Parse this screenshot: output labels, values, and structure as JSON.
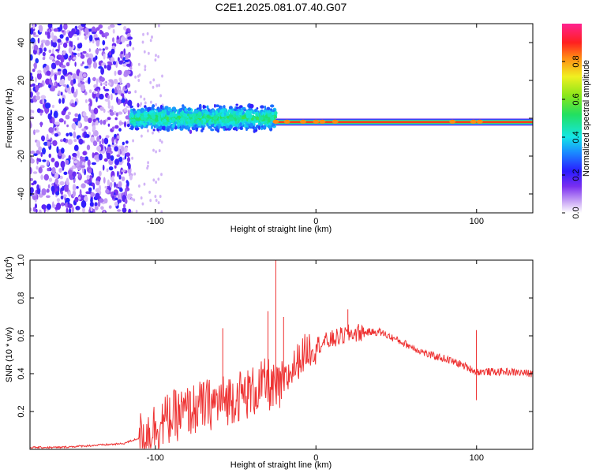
{
  "title": "C2E1.2025.081.07.40.G07",
  "colors": {
    "snr_line": "#ee3333",
    "frame": "#000000"
  },
  "chart_data": [
    {
      "type": "heatmap",
      "xlabel": "Height of straight line (km)",
      "ylabel": "Frequency (Hz)",
      "xlim": [
        -178,
        135
      ],
      "ylim": [
        -50,
        50
      ],
      "xticks": [
        -100,
        0,
        100
      ],
      "yticks": [
        -40,
        -20,
        0,
        20,
        40
      ],
      "colorbar": {
        "label": "Normalized spectral amplitude",
        "range": [
          0,
          1
        ],
        "ticks": [
          0.0,
          0.2,
          0.4,
          0.6,
          0.8
        ],
        "colormap": "rainbow (violet-blue-cyan-green-yellow-red-magenta)"
      },
      "features": [
        {
          "region": "noise",
          "x_range": [
            -178,
            -115
          ],
          "frequency_range": [
            -50,
            50
          ],
          "amplitude": "low"
        },
        {
          "region": "spread",
          "x_range": [
            -115,
            -25
          ],
          "frequency_center": 0,
          "frequency_spread": 8,
          "amplitude": "medium"
        },
        {
          "region": "narrow line",
          "x_range": [
            -25,
            135
          ],
          "frequency_center": -2,
          "frequency_spread": 1.5,
          "amplitude": "high"
        }
      ]
    },
    {
      "type": "line",
      "xlabel": "Height of straight line (km)",
      "ylabel": "SNR (10 * v/v)",
      "y_multiplier": "(x10",
      "y_multiplier_exp": "4",
      "xlim": [
        -178,
        135
      ],
      "ylim": [
        0,
        1.0
      ],
      "xticks": [
        -100,
        0,
        100
      ],
      "yticks": [
        0.2,
        0.4,
        0.6,
        0.8,
        1.0
      ],
      "series": [
        {
          "x": [
            -178,
            -160,
            -140,
            -120,
            -110,
            -100,
            -90,
            -80,
            -70,
            -60,
            -50,
            -40,
            -30,
            -25,
            -20,
            -15,
            -10,
            -5,
            0,
            10,
            20,
            30,
            40,
            50,
            60,
            70,
            80,
            90,
            100,
            110,
            120,
            135
          ],
          "y": [
            0.01,
            0.01,
            0.02,
            0.03,
            0.06,
            0.12,
            0.17,
            0.2,
            0.23,
            0.25,
            0.28,
            0.3,
            0.35,
            0.3,
            0.34,
            0.42,
            0.48,
            0.53,
            0.55,
            0.58,
            0.61,
            0.62,
            0.62,
            0.58,
            0.54,
            0.5,
            0.48,
            0.45,
            0.41,
            0.41,
            0.41,
            0.4
          ]
        }
      ],
      "spikes": [
        {
          "x": -58,
          "y": 0.64
        },
        {
          "x": -30,
          "y": 0.73
        },
        {
          "x": -25,
          "y": 1.0
        },
        {
          "x": -20,
          "y": 0.7
        },
        {
          "x": 20,
          "y": 0.74
        },
        {
          "x": 100,
          "y": 0.63
        },
        {
          "x": 100,
          "y": 0.26
        }
      ]
    }
  ]
}
